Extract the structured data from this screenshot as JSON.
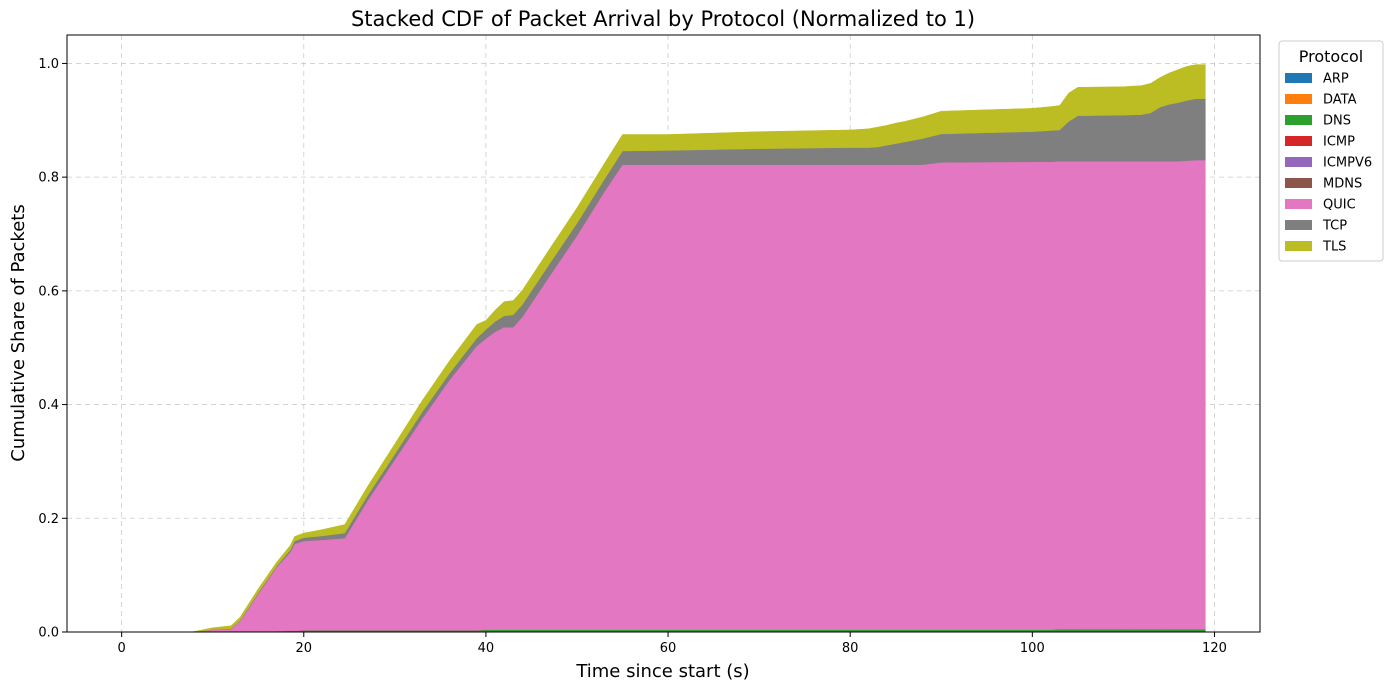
{
  "chart_data": {
    "type": "area",
    "title": "Stacked CDF of Packet Arrival by Protocol (Normalized to 1)",
    "xlabel": "Time since start (s)",
    "ylabel": "Cumulative Share of Packets",
    "xlim": [
      -6,
      125
    ],
    "ylim": [
      0,
      1.05
    ],
    "xticks": [
      0,
      20,
      40,
      60,
      80,
      100,
      120
    ],
    "yticks": [
      0.0,
      0.2,
      0.4,
      0.6,
      0.8,
      1.0
    ],
    "grid": true,
    "legend": {
      "title": "Protocol",
      "placement": "outside-top-right"
    },
    "x": [
      0,
      7.5,
      8,
      10,
      12,
      13,
      15,
      17,
      18.5,
      19,
      20,
      22,
      24.5,
      27,
      30,
      33,
      36,
      39,
      40,
      41,
      42,
      43,
      44,
      47,
      50,
      53,
      55,
      60,
      70,
      80,
      82,
      83,
      84,
      85,
      86,
      87,
      88,
      90,
      100,
      102,
      103,
      104,
      105,
      110,
      112,
      113,
      114,
      115,
      116,
      117,
      118,
      119
    ],
    "series": [
      {
        "name": "ARP",
        "color": "#1f77b4",
        "values": [
          0,
          0,
          0,
          0,
          0,
          0,
          0,
          0,
          0,
          0,
          0,
          0,
          0,
          0,
          0,
          0,
          0,
          0,
          0,
          0,
          0,
          0,
          0,
          0,
          0,
          0,
          0,
          0,
          0,
          0,
          0,
          0,
          0,
          0,
          0,
          0,
          0,
          0,
          0,
          0,
          0,
          0,
          0,
          0,
          0,
          0,
          0,
          0,
          0,
          0,
          0,
          0
        ]
      },
      {
        "name": "DATA",
        "color": "#ff7f0e",
        "values": [
          0,
          0,
          0,
          0,
          0,
          0,
          0,
          0,
          0,
          0,
          0,
          0,
          0,
          0,
          0,
          0,
          0,
          0,
          0,
          0,
          0,
          0,
          0,
          0,
          0,
          0,
          0,
          0,
          0,
          0,
          0,
          0,
          0,
          0,
          0,
          0,
          0,
          0,
          0,
          0,
          0,
          0,
          0,
          0,
          0,
          0,
          0,
          0,
          0,
          0,
          0,
          0
        ]
      },
      {
        "name": "DNS",
        "color": "#2ca02c",
        "values": [
          0,
          0,
          0,
          0.0005,
          0.001,
          0.001,
          0.001,
          0.0015,
          0.002,
          0.002,
          0.003,
          0.003,
          0.003,
          0.003,
          0.003,
          0.003,
          0.003,
          0.003,
          0.004,
          0.004,
          0.004,
          0.004,
          0.004,
          0.004,
          0.004,
          0.004,
          0.004,
          0.004,
          0.004,
          0.004,
          0.004,
          0.004,
          0.004,
          0.004,
          0.004,
          0.004,
          0.004,
          0.004,
          0.004,
          0.004,
          0.005,
          0.005,
          0.005,
          0.005,
          0.005,
          0.005,
          0.005,
          0.005,
          0.005,
          0.005,
          0.005,
          0.005
        ]
      },
      {
        "name": "ICMP",
        "color": "#d62728",
        "values": [
          0,
          0,
          0,
          0,
          0,
          0,
          0,
          0,
          0,
          0,
          0,
          0,
          0,
          0,
          0,
          0,
          0,
          0,
          0,
          0,
          0,
          0,
          0,
          0,
          0,
          0,
          0,
          0,
          0,
          0,
          0,
          0,
          0,
          0,
          0,
          0,
          0,
          0,
          0,
          0,
          0,
          0,
          0,
          0,
          0,
          0,
          0,
          0,
          0,
          0,
          0,
          0
        ]
      },
      {
        "name": "ICMPV6",
        "color": "#9467bd",
        "values": [
          0,
          0,
          0,
          0,
          0,
          0,
          0,
          0,
          0,
          0,
          0,
          0,
          0,
          0,
          0,
          0,
          0,
          0,
          0,
          0,
          0,
          0,
          0,
          0,
          0,
          0,
          0,
          0,
          0,
          0,
          0,
          0,
          0,
          0,
          0,
          0,
          0,
          0,
          0,
          0,
          0,
          0,
          0,
          0,
          0,
          0,
          0,
          0,
          0,
          0,
          0,
          0
        ]
      },
      {
        "name": "MDNS",
        "color": "#8c564b",
        "values": [
          0,
          0,
          0,
          0,
          0,
          0,
          0,
          0,
          0,
          0,
          0,
          0,
          0,
          0,
          0,
          0,
          0,
          0,
          0,
          0,
          0,
          0,
          0,
          0,
          0,
          0,
          0,
          0,
          0,
          0,
          0,
          0,
          0,
          0,
          0,
          0,
          0,
          0,
          0,
          0,
          0,
          0,
          0,
          0,
          0,
          0,
          0,
          0,
          0,
          0,
          0,
          0
        ]
      },
      {
        "name": "QUIC",
        "color": "#e377c2",
        "values": [
          0,
          0,
          0,
          0.0035,
          0.004,
          0.018,
          0.066,
          0.112,
          0.138,
          0.153,
          0.157,
          0.159,
          0.162,
          0.228,
          0.3,
          0.372,
          0.44,
          0.5,
          0.512,
          0.524,
          0.532,
          0.532,
          0.55,
          0.622,
          0.693,
          0.77,
          0.818,
          0.818,
          0.818,
          0.818,
          0.818,
          0.818,
          0.818,
          0.818,
          0.818,
          0.818,
          0.818,
          0.822,
          0.823,
          0.823,
          0.823,
          0.823,
          0.823,
          0.823,
          0.823,
          0.823,
          0.823,
          0.823,
          0.823,
          0.824,
          0.825,
          0.825
        ]
      },
      {
        "name": "TCP",
        "color": "#7f7f7f",
        "values": [
          0,
          0,
          0,
          0.0005,
          0.001,
          0.001,
          0.002,
          0.002,
          0.004,
          0.005,
          0.006,
          0.007,
          0.009,
          0.009,
          0.01,
          0.012,
          0.012,
          0.014,
          0.016,
          0.018,
          0.02,
          0.022,
          0.022,
          0.022,
          0.022,
          0.022,
          0.024,
          0.025,
          0.028,
          0.03,
          0.03,
          0.031,
          0.034,
          0.037,
          0.04,
          0.043,
          0.046,
          0.05,
          0.053,
          0.055,
          0.055,
          0.07,
          0.08,
          0.081,
          0.082,
          0.085,
          0.095,
          0.1,
          0.103,
          0.106,
          0.108,
          0.108
        ]
      },
      {
        "name": "TLS",
        "color": "#bcbd22",
        "values": [
          0,
          0,
          0.001,
          0.003,
          0.005,
          0.006,
          0.007,
          0.007,
          0.008,
          0.008,
          0.008,
          0.011,
          0.015,
          0.016,
          0.018,
          0.02,
          0.022,
          0.024,
          0.016,
          0.02,
          0.025,
          0.025,
          0.025,
          0.026,
          0.027,
          0.028,
          0.029,
          0.028,
          0.03,
          0.031,
          0.033,
          0.035,
          0.035,
          0.036,
          0.036,
          0.037,
          0.038,
          0.04,
          0.041,
          0.042,
          0.043,
          0.05,
          0.05,
          0.05,
          0.051,
          0.052,
          0.052,
          0.055,
          0.058,
          0.06,
          0.06,
          0.06
        ]
      }
    ]
  }
}
